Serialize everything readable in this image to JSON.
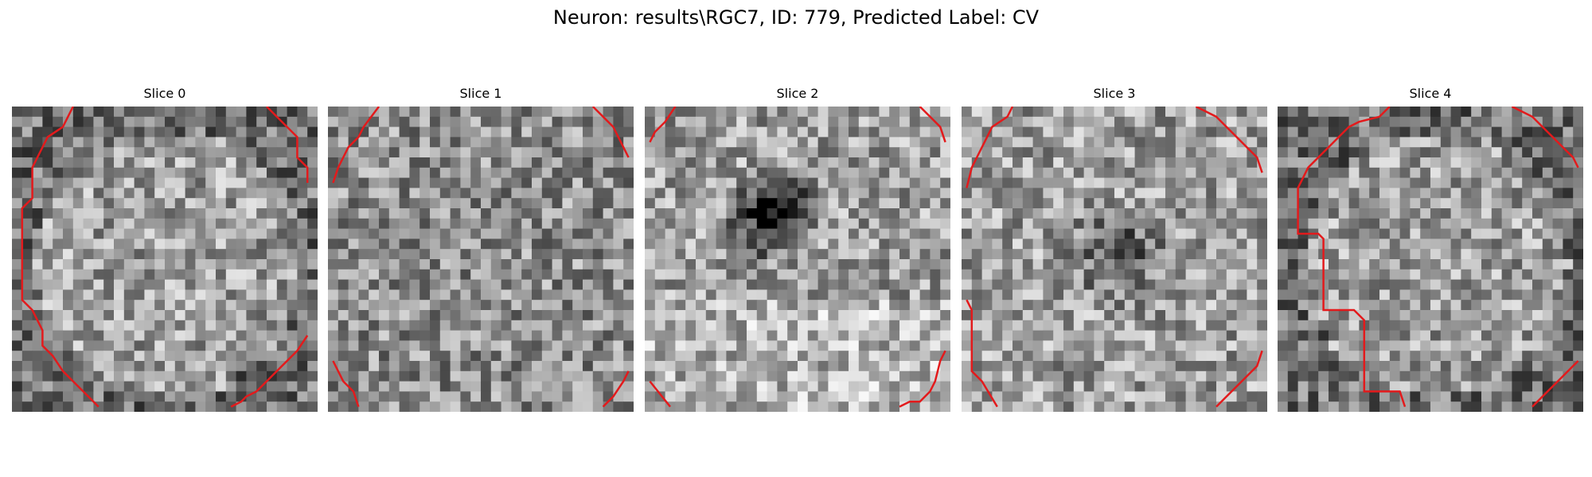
{
  "figure": {
    "title": "Neuron: results\\RGC7, ID: 779, Predicted Label: CV"
  },
  "slices": [
    {
      "title": "Slice 0",
      "seed": 11,
      "dark_blob": null,
      "contour_color": "#e31a1c"
    },
    {
      "title": "Slice 1",
      "seed": 23,
      "dark_blob": null,
      "contour_color": "#e31a1c"
    },
    {
      "title": "Slice 2",
      "seed": 37,
      "dark_blob": "center-upper-left",
      "contour_color": "#e31a1c"
    },
    {
      "title": "Slice 3",
      "seed": 41,
      "dark_blob": "center-faint",
      "contour_color": "#e31a1c"
    },
    {
      "title": "Slice 4",
      "seed": 59,
      "dark_blob": null,
      "contour_color": "#e31a1c"
    }
  ],
  "colormap": "gray"
}
